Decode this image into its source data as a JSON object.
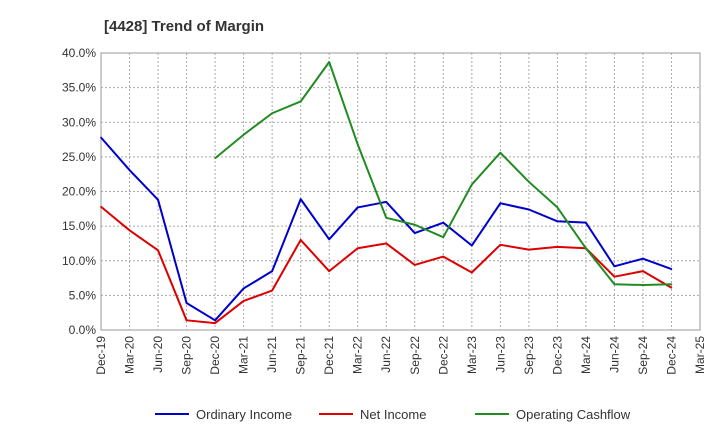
{
  "chart_data": {
    "type": "line",
    "title": "[4428]  Trend of Margin",
    "xlabel": "",
    "ylabel": "",
    "ylim": [
      0,
      40
    ],
    "y_ticks": [
      "0.0%",
      "5.0%",
      "10.0%",
      "15.0%",
      "20.0%",
      "25.0%",
      "30.0%",
      "35.0%",
      "40.0%"
    ],
    "categories": [
      "Dec-19",
      "Mar-20",
      "Jun-20",
      "Sep-20",
      "Dec-20",
      "Mar-21",
      "Jun-21",
      "Sep-21",
      "Dec-21",
      "Mar-22",
      "Jun-22",
      "Sep-22",
      "Dec-22",
      "Mar-23",
      "Jun-23",
      "Sep-23",
      "Dec-23",
      "Mar-24",
      "Jun-24",
      "Sep-24",
      "Dec-24",
      "Mar-25"
    ],
    "grid": true,
    "legend_position": "bottom",
    "series": [
      {
        "name": "Ordinary Income",
        "color": "#0000cc",
        "values": [
          27.8,
          23.1,
          18.8,
          3.9,
          1.4,
          6.0,
          8.5,
          18.9,
          13.1,
          17.7,
          18.5,
          14.0,
          15.5,
          12.2,
          18.3,
          17.4,
          15.7,
          15.5,
          9.2,
          10.3,
          8.8,
          null
        ]
      },
      {
        "name": "Net Income",
        "color": "#dd0000",
        "values": [
          17.8,
          14.4,
          11.5,
          1.4,
          1.0,
          4.2,
          5.7,
          13.0,
          8.5,
          11.8,
          12.5,
          9.4,
          10.6,
          8.3,
          12.3,
          11.6,
          12.0,
          11.8,
          7.7,
          8.5,
          6.1,
          null
        ]
      },
      {
        "name": "Operating Cashflow",
        "color": "#228b22",
        "values": [
          null,
          null,
          null,
          null,
          24.8,
          28.2,
          31.3,
          33.0,
          38.7,
          26.8,
          16.2,
          15.2,
          13.4,
          21.0,
          25.6,
          21.4,
          17.7,
          11.8,
          6.6,
          6.5,
          6.6,
          null
        ]
      }
    ]
  }
}
